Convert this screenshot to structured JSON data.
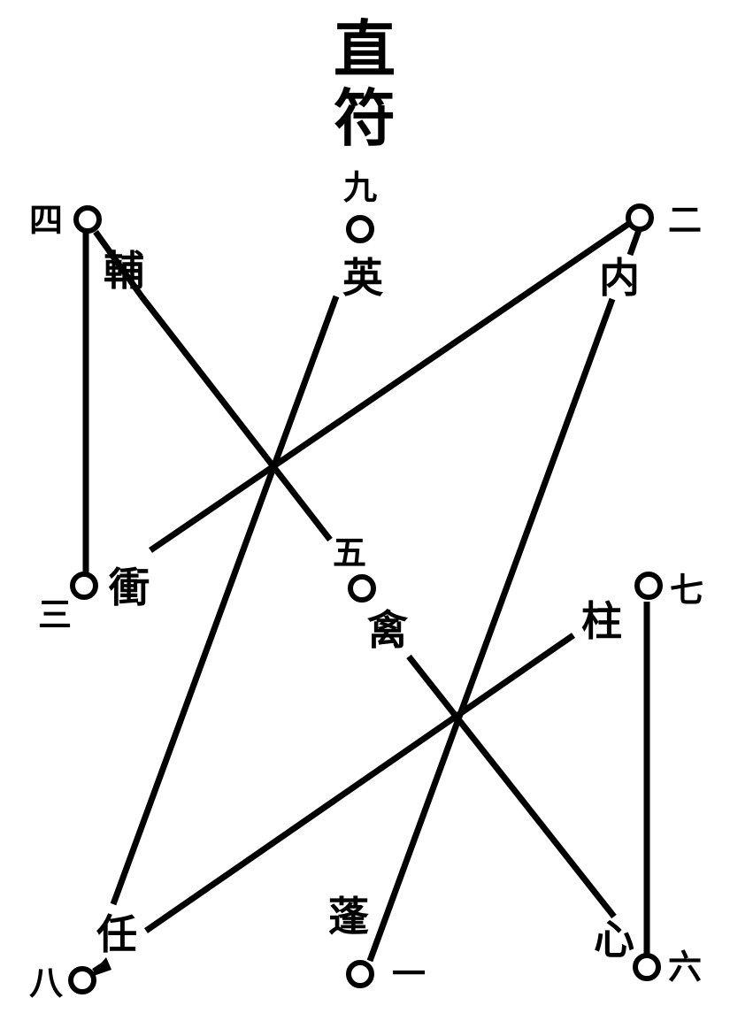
{
  "title": {
    "line1": "直",
    "line2": "符"
  },
  "palaces": {
    "jiu": "九",
    "si": "四",
    "er": "二",
    "san": "三",
    "wu": "五",
    "qi": "七",
    "ba": "八",
    "yi": "一",
    "liu": "六"
  },
  "stars": {
    "fu": "輔",
    "ying": "英",
    "nei": "内",
    "chong": "衝",
    "qin": "禽",
    "zhu": "柱",
    "ren": "任",
    "peng": "蓬",
    "xin": "心"
  }
}
